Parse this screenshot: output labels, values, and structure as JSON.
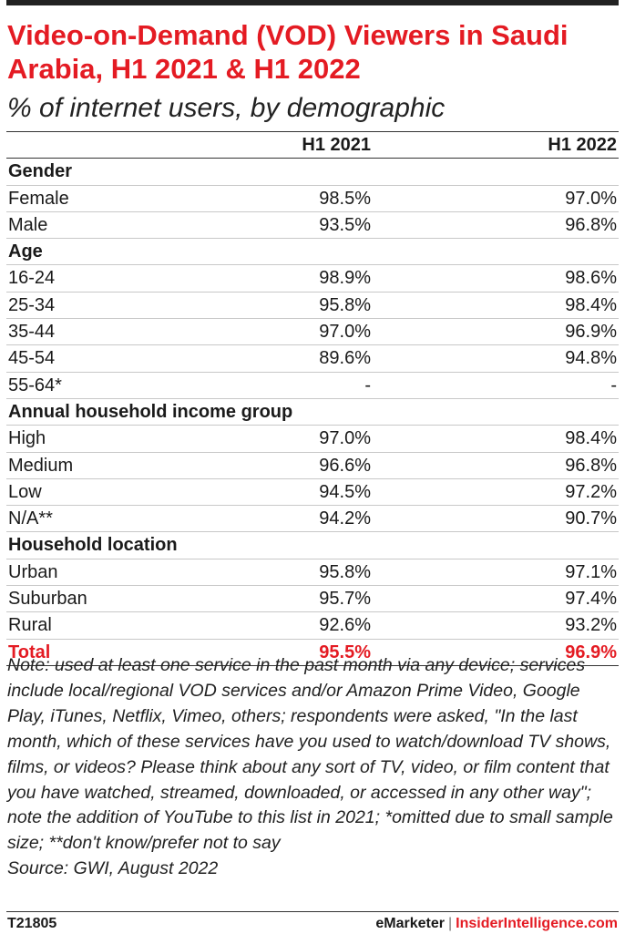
{
  "header": {
    "title": "Video-on-Demand (VOD) Viewers in Saudi Arabia, H1 2021 & H1 2022",
    "subtitle": "% of internet users, by demographic"
  },
  "chart_data": {
    "type": "table",
    "columns": [
      "H1 2021",
      "H1 2022"
    ],
    "rows": [
      {
        "kind": "group",
        "label": "Gender"
      },
      {
        "kind": "data",
        "label": "Female",
        "values": [
          "98.5%",
          "97.0%"
        ]
      },
      {
        "kind": "data",
        "label": "Male",
        "values": [
          "93.5%",
          "96.8%"
        ]
      },
      {
        "kind": "group",
        "label": "Age"
      },
      {
        "kind": "data",
        "label": "16-24",
        "values": [
          "98.9%",
          "98.6%"
        ]
      },
      {
        "kind": "data",
        "label": "25-34",
        "values": [
          "95.8%",
          "98.4%"
        ]
      },
      {
        "kind": "data",
        "label": "35-44",
        "values": [
          "97.0%",
          "96.9%"
        ]
      },
      {
        "kind": "data",
        "label": "45-54",
        "values": [
          "89.6%",
          "94.8%"
        ]
      },
      {
        "kind": "data",
        "label": "55-64*",
        "values": [
          "-",
          "-"
        ]
      },
      {
        "kind": "group",
        "label": "Annual household income group"
      },
      {
        "kind": "data",
        "label": "High",
        "values": [
          "97.0%",
          "98.4%"
        ]
      },
      {
        "kind": "data",
        "label": "Medium",
        "values": [
          "96.6%",
          "96.8%"
        ]
      },
      {
        "kind": "data",
        "label": "Low",
        "values": [
          "94.5%",
          "97.2%"
        ]
      },
      {
        "kind": "data",
        "label": "N/A**",
        "values": [
          "94.2%",
          "90.7%"
        ]
      },
      {
        "kind": "group",
        "label": "Household location"
      },
      {
        "kind": "data",
        "label": "Urban",
        "values": [
          "95.8%",
          "97.1%"
        ]
      },
      {
        "kind": "data",
        "label": "Suburban",
        "values": [
          "95.7%",
          "97.4%"
        ]
      },
      {
        "kind": "data",
        "label": "Rural",
        "values": [
          "92.6%",
          "93.2%"
        ]
      },
      {
        "kind": "total",
        "label": "Total",
        "values": [
          "95.5%",
          "96.9%"
        ]
      }
    ]
  },
  "note": {
    "text": "Note: used at least one service in the past month via any device; services include local/regional VOD services and/or Amazon Prime Video, Google Play, iTunes, Netflix, Vimeo, others; respondents were asked, \"In the last month, which of these services have you used to watch/download TV shows, films, or videos? Please think about any sort of TV, video, or film content that you have watched, streamed, downloaded, or accessed in any other way\"; note the addition of YouTube to this list in 2021; *omitted due to small sample size; **don't know/prefer not to say",
    "source": "Source: GWI, August 2022"
  },
  "footer": {
    "code": "T21805",
    "brand_primary": "eMarketer",
    "separator": "|",
    "brand_secondary": "InsiderIntelligence.com"
  },
  "colors": {
    "accent": "#e41b23",
    "text": "#1a1a1a",
    "rule": "#c8c8c8"
  }
}
